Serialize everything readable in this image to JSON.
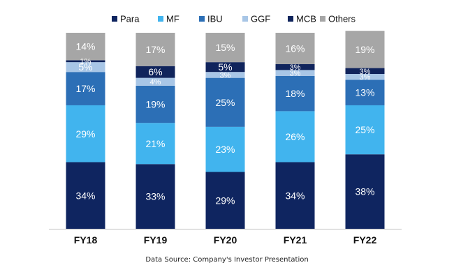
{
  "chart_data": {
    "type": "bar",
    "stacked": true,
    "normalized": true,
    "categories": [
      "FY18",
      "FY19",
      "FY20",
      "FY21",
      "FY22"
    ],
    "series": [
      {
        "name": "Para",
        "color": "#0f2560",
        "values": [
          34,
          33,
          29,
          34,
          38
        ]
      },
      {
        "name": "MF",
        "color": "#41b4ee",
        "values": [
          29,
          21,
          23,
          26,
          25
        ]
      },
      {
        "name": "IBU",
        "color": "#2c6fb6",
        "values": [
          17,
          19,
          25,
          18,
          13
        ]
      },
      {
        "name": "GGF",
        "color": "#a8c6e6",
        "values": [
          5,
          4,
          3,
          3,
          3
        ]
      },
      {
        "name": "MCB",
        "color": "#10245c",
        "values": [
          1,
          6,
          5,
          3,
          3
        ]
      },
      {
        "name": "Others",
        "color": "#a6a6a6",
        "values": [
          14,
          17,
          15,
          16,
          19
        ]
      }
    ],
    "data_labels": [
      [
        "34%",
        "29%",
        "17%",
        "5%",
        "1%",
        "14%"
      ],
      [
        "33%",
        "21%",
        "19%",
        "4%",
        "6%",
        "17%"
      ],
      [
        "29%",
        "23%",
        "25%",
        "3%",
        "5%",
        "15%"
      ],
      [
        "34%",
        "26%",
        "18%",
        "3%",
        "3%",
        "16%"
      ],
      [
        "38%",
        "25%",
        "13%",
        "3%",
        "3%",
        "19%"
      ]
    ],
    "legend": "top",
    "title": "",
    "xlabel": "",
    "ylabel": "",
    "ylim": [
      0,
      100
    ],
    "grid": false
  },
  "source_note": "Data Source: Company's Investor Presentation"
}
